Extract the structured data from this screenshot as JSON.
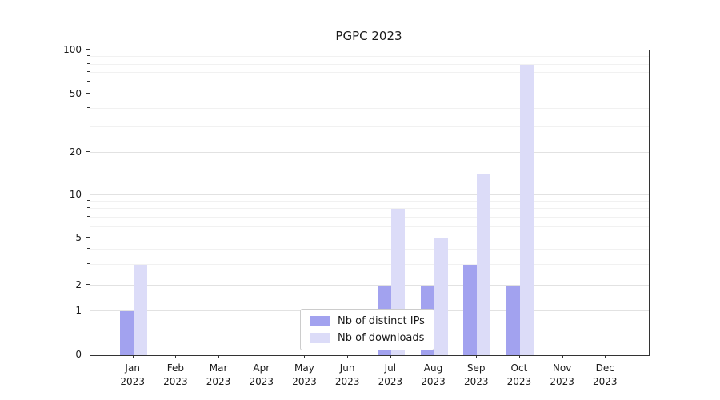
{
  "chart_data": {
    "type": "bar",
    "title": "PGPC 2023",
    "categories": [
      "Jan",
      "Feb",
      "Mar",
      "Apr",
      "May",
      "Jun",
      "Jul",
      "Aug",
      "Sep",
      "Oct",
      "Nov",
      "Dec"
    ],
    "year_label": "2023",
    "series": [
      {
        "name": "Nb of distinct IPs",
        "color": "#a2a2ef",
        "values": [
          1,
          0,
          0,
          0,
          0,
          0,
          2,
          2,
          3,
          2,
          0,
          0
        ]
      },
      {
        "name": "Nb of downloads",
        "color": "#dcdcf8",
        "values": [
          3,
          0,
          0,
          0,
          0,
          0,
          8,
          5,
          14,
          80,
          0,
          0
        ]
      }
    ],
    "yscale": "symlog",
    "ylim": [
      0,
      100
    ],
    "y_ticks": [
      0,
      1,
      2,
      5,
      10,
      20,
      50,
      100
    ],
    "y_minor_ticks": [
      3,
      4,
      6,
      7,
      8,
      9,
      30,
      40,
      60,
      70,
      80,
      90
    ],
    "grid": "horizontal",
    "legend_position": "lower center"
  }
}
